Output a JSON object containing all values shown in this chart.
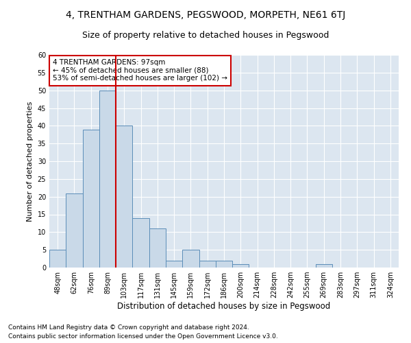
{
  "title": "4, TRENTHAM GARDENS, PEGSWOOD, MORPETH, NE61 6TJ",
  "subtitle": "Size of property relative to detached houses in Pegswood",
  "xlabel": "Distribution of detached houses by size in Pegswood",
  "ylabel": "Number of detached properties",
  "bins": [
    "48sqm",
    "62sqm",
    "76sqm",
    "89sqm",
    "103sqm",
    "117sqm",
    "131sqm",
    "145sqm",
    "159sqm",
    "172sqm",
    "186sqm",
    "200sqm",
    "214sqm",
    "228sqm",
    "242sqm",
    "255sqm",
    "269sqm",
    "283sqm",
    "297sqm",
    "311sqm",
    "324sqm"
  ],
  "values": [
    5,
    21,
    39,
    50,
    40,
    14,
    11,
    2,
    5,
    2,
    2,
    1,
    0,
    0,
    0,
    0,
    1,
    0,
    0,
    0,
    0
  ],
  "bar_color": "#c9d9e8",
  "bar_edge_color": "#5b8db8",
  "vline_x_index": 3.5,
  "vline_color": "#cc0000",
  "annotation_text": "4 TRENTHAM GARDENS: 97sqm\n← 45% of detached houses are smaller (88)\n53% of semi-detached houses are larger (102) →",
  "annotation_box_color": "white",
  "annotation_box_edge": "#cc0000",
  "ylim": [
    0,
    60
  ],
  "yticks": [
    0,
    5,
    10,
    15,
    20,
    25,
    30,
    35,
    40,
    45,
    50,
    55,
    60
  ],
  "plot_bg_color": "#dce6f0",
  "footer1": "Contains HM Land Registry data © Crown copyright and database right 2024.",
  "footer2": "Contains public sector information licensed under the Open Government Licence v3.0.",
  "title_fontsize": 10,
  "subtitle_fontsize": 9,
  "xlabel_fontsize": 8.5,
  "ylabel_fontsize": 8,
  "tick_fontsize": 7,
  "annotation_fontsize": 7.5,
  "footer_fontsize": 6.5
}
